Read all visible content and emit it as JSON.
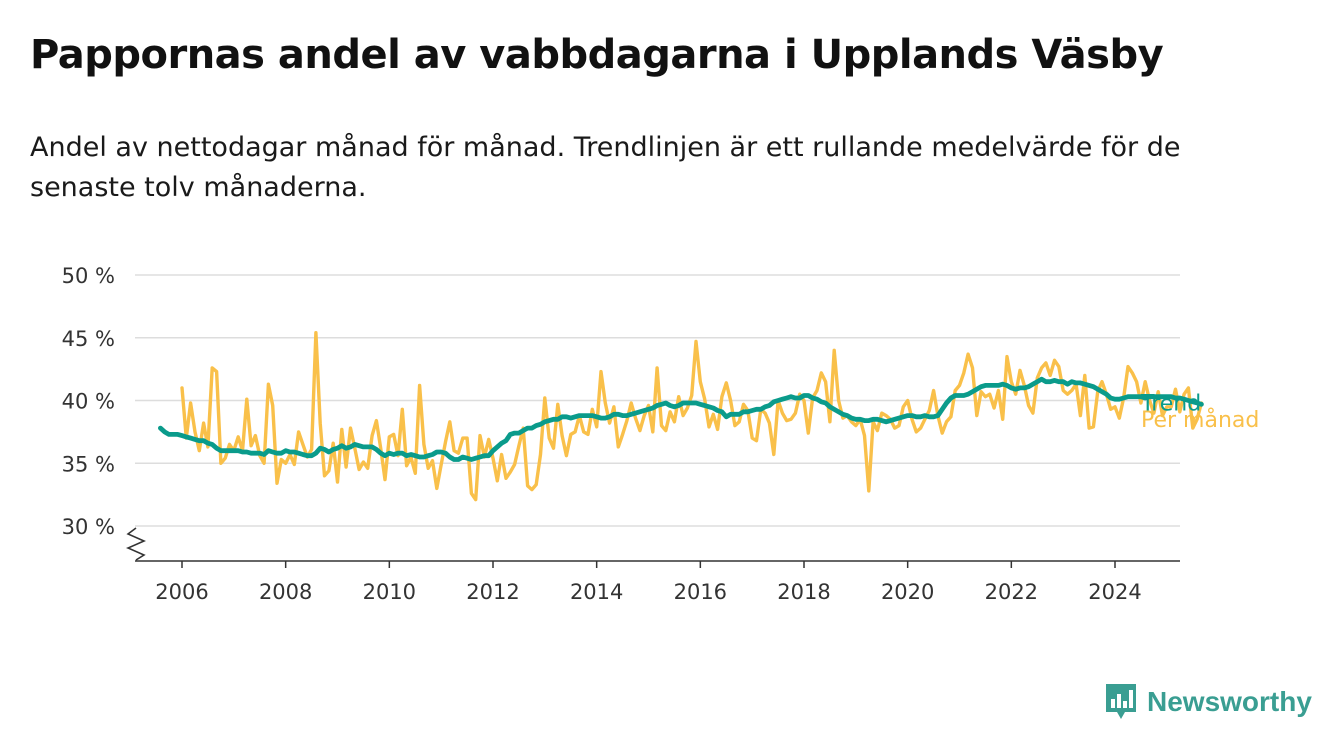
{
  "header": {
    "title": "Pappornas andel av vabbdagarna i Upplands Väsby",
    "subtitle": "Andel av nettodagar månad för månad. Trendlinjen är ett rullande medelvärde för de senaste tolv månaderna."
  },
  "brand": {
    "name": "Newsworthy",
    "icon": "bar-chart-bubble-icon",
    "color": "#3a9e92"
  },
  "chart_data": {
    "type": "line",
    "ylim": [
      30,
      50
    ],
    "y_ticks": [
      30,
      35,
      40,
      45,
      50
    ],
    "y_tick_labels": [
      "30 %",
      "35 %",
      "40 %",
      "45 %",
      "50 %"
    ],
    "x_ticks": [
      2006,
      2008,
      2010,
      2012,
      2014,
      2016,
      2018,
      2020,
      2022,
      2024
    ],
    "x_tick_labels": [
      "2006",
      "2008",
      "2010",
      "2012",
      "2014",
      "2016",
      "2018",
      "2020",
      "2022",
      "2024"
    ],
    "xlim": [
      "2005-11",
      "2025-01"
    ],
    "axis_break": true,
    "grid": true,
    "x_start": "2006-01",
    "series": [
      {
        "name": "Per månad",
        "color": "#f9c04a",
        "values": [
          41.0,
          37.0,
          39.8,
          37.5,
          36.0,
          38.2,
          36.3,
          42.6,
          42.3,
          35.0,
          35.4,
          36.5,
          36.0,
          37.1,
          36.0,
          40.1,
          36.4,
          37.2,
          35.6,
          35.0,
          41.3,
          39.6,
          33.4,
          35.3,
          35.0,
          35.7,
          34.9,
          37.5,
          36.5,
          35.5,
          36.1,
          45.4,
          38.2,
          34.0,
          34.4,
          36.6,
          33.5,
          37.7,
          34.7,
          37.8,
          36.2,
          34.5,
          35.1,
          34.6,
          37.2,
          38.4,
          36.2,
          33.7,
          37.1,
          37.3,
          35.6,
          39.3,
          34.8,
          35.5,
          34.2,
          41.2,
          36.5,
          34.6,
          35.2,
          33.0,
          34.9,
          36.7,
          38.3,
          36.0,
          35.8,
          37.0,
          37.0,
          32.6,
          32.1,
          37.2,
          35.5,
          36.9,
          35.4,
          33.6,
          35.7,
          33.8,
          34.3,
          34.9,
          36.4,
          37.8,
          33.2,
          32.9,
          33.3,
          35.7,
          40.2,
          37.0,
          36.2,
          39.7,
          37.2,
          35.6,
          37.3,
          37.5,
          38.8,
          37.5,
          37.3,
          39.3,
          37.9,
          42.3,
          39.8,
          38.2,
          39.5,
          36.3,
          37.3,
          38.4,
          39.8,
          38.6,
          37.6,
          38.8,
          39.6,
          37.5,
          42.6,
          38.0,
          37.6,
          39.1,
          38.3,
          40.3,
          38.8,
          39.4,
          40.4,
          44.7,
          41.5,
          40.1,
          37.9,
          38.9,
          37.7,
          40.3,
          41.4,
          40.0,
          38.0,
          38.3,
          39.7,
          39.2,
          37.0,
          36.8,
          39.3,
          39.0,
          38.2,
          35.7,
          40.0,
          39.0,
          38.4,
          38.5,
          39.0,
          40.5,
          40.0,
          37.4,
          40.2,
          40.8,
          42.2,
          41.5,
          38.3,
          44.0,
          40.0,
          38.6,
          38.8,
          38.3,
          38.0,
          38.5,
          37.2,
          32.8,
          38.3,
          37.6,
          39.0,
          38.8,
          38.5,
          37.8,
          38.0,
          39.5,
          40.0,
          38.5,
          37.5,
          37.8,
          38.5,
          39.2,
          40.8,
          38.8,
          37.4,
          38.3,
          38.7,
          40.8,
          41.2,
          42.2,
          43.7,
          42.6,
          38.8,
          40.7,
          40.3,
          40.5,
          39.4,
          40.8,
          38.5,
          43.5,
          41.5,
          40.5,
          42.4,
          41.2,
          39.6,
          39.0,
          41.8,
          42.6,
          43.0,
          42.0,
          43.2,
          42.7,
          40.8,
          40.5,
          40.8,
          41.3,
          38.8,
          42.0,
          37.8,
          37.9,
          40.7,
          41.5,
          40.5,
          39.3,
          39.5,
          38.6,
          40.2,
          42.7,
          42.2,
          41.5,
          39.8,
          41.5,
          40.0,
          39.0,
          40.7,
          38.8,
          39.5,
          39.5,
          40.9,
          39.1,
          40.5,
          41.0,
          37.8,
          38.5,
          39.8
        ]
      },
      {
        "name": "Trend",
        "color": "#0a9b8b",
        "values": [
          37.8,
          37.5,
          37.3,
          37.3,
          37.3,
          37.2,
          37.1,
          37.0,
          36.9,
          36.8,
          36.8,
          36.6,
          36.5,
          36.2,
          36.0,
          36.0,
          36.0,
          36.0,
          36.0,
          35.9,
          35.9,
          35.8,
          35.8,
          35.8,
          35.7,
          36.0,
          35.9,
          35.8,
          35.8,
          36.0,
          35.9,
          35.9,
          35.8,
          35.7,
          35.6,
          35.6,
          35.8,
          36.2,
          36.1,
          35.9,
          36.1,
          36.2,
          36.4,
          36.2,
          36.3,
          36.5,
          36.4,
          36.3,
          36.3,
          36.3,
          36.1,
          35.8,
          35.6,
          35.8,
          35.7,
          35.8,
          35.8,
          35.6,
          35.7,
          35.6,
          35.5,
          35.5,
          35.6,
          35.7,
          35.9,
          35.9,
          35.8,
          35.5,
          35.3,
          35.3,
          35.5,
          35.4,
          35.3,
          35.4,
          35.5,
          35.6,
          35.6,
          36.0,
          36.3,
          36.6,
          36.8,
          37.3,
          37.4,
          37.4,
          37.6,
          37.8,
          37.8,
          38.0,
          38.1,
          38.3,
          38.4,
          38.5,
          38.5,
          38.7,
          38.7,
          38.6,
          38.7,
          38.8,
          38.8,
          38.8,
          38.8,
          38.7,
          38.6,
          38.6,
          38.7,
          38.9,
          38.9,
          38.8,
          38.8,
          38.9,
          39.0,
          39.1,
          39.2,
          39.3,
          39.4,
          39.6,
          39.7,
          39.8,
          39.6,
          39.5,
          39.6,
          39.8,
          39.8,
          39.8,
          39.8,
          39.7,
          39.6,
          39.5,
          39.4,
          39.2,
          39.1,
          38.7,
          38.9,
          38.9,
          38.9,
          39.1,
          39.1,
          39.2,
          39.3,
          39.3,
          39.5,
          39.6,
          39.9,
          40.0,
          40.1,
          40.2,
          40.3,
          40.2,
          40.2,
          40.4,
          40.4,
          40.2,
          40.1,
          39.9,
          39.8,
          39.5,
          39.3,
          39.1,
          38.9,
          38.8,
          38.6,
          38.5,
          38.5,
          38.4,
          38.4,
          38.5,
          38.5,
          38.4,
          38.3,
          38.4,
          38.5,
          38.6,
          38.7,
          38.8,
          38.8,
          38.7,
          38.7,
          38.8,
          38.7,
          38.7,
          38.8,
          39.3,
          39.8,
          40.2,
          40.4,
          40.4,
          40.4,
          40.5,
          40.7,
          40.9,
          41.1,
          41.2,
          41.2,
          41.2,
          41.2,
          41.3,
          41.2,
          41.0,
          40.9,
          41.0,
          41.0,
          41.1,
          41.3,
          41.5,
          41.7,
          41.5,
          41.5,
          41.6,
          41.5,
          41.5,
          41.3,
          41.5,
          41.4,
          41.4,
          41.3,
          41.2,
          41.1,
          40.9,
          40.7,
          40.5,
          40.2,
          40.1,
          40.1,
          40.2,
          40.3,
          40.3,
          40.3,
          40.3,
          40.2,
          40.3,
          40.3,
          40.3,
          40.3,
          40.3,
          40.3,
          40.2,
          40.2,
          40.1,
          40.0,
          39.9,
          39.8,
          39.7
        ]
      }
    ]
  }
}
